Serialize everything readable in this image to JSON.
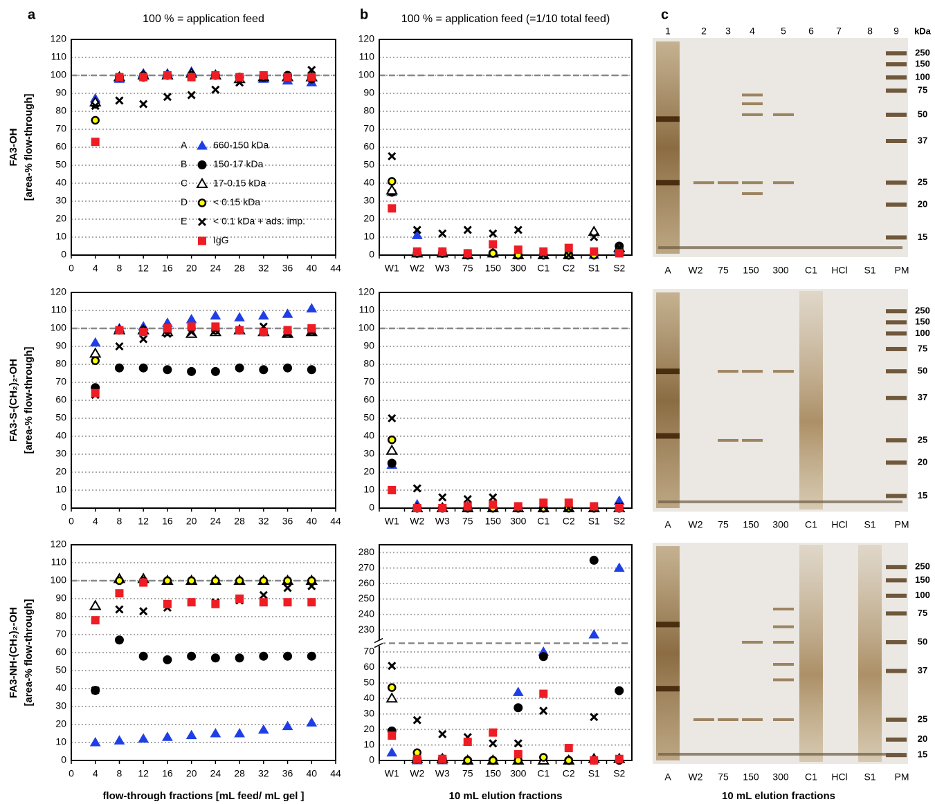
{
  "chart_data": [
    {
      "type": "scatter",
      "panel_label": "a",
      "title": "100 % = application feed",
      "ylabel": [
        "FA3-OH",
        "[area-% flow-through]"
      ],
      "x": [
        4,
        8,
        12,
        16,
        20,
        24,
        28,
        32,
        36,
        40
      ],
      "xlim": [
        0,
        44
      ],
      "xticks": [
        0,
        4,
        8,
        12,
        16,
        20,
        24,
        28,
        32,
        36,
        40,
        44
      ],
      "ylim": [
        0,
        120
      ],
      "yticks": [
        0,
        10,
        20,
        30,
        40,
        50,
        60,
        70,
        80,
        90,
        100,
        110,
        120
      ],
      "grid": true,
      "reference_line": 100,
      "legend": "center right",
      "series": [
        {
          "key": "A",
          "name": "660-150 kDa",
          "marker": "triangle",
          "color": "#1f3fe6",
          "values": [
            87,
            98,
            101,
            101,
            102,
            100,
            98,
            98,
            97,
            96
          ]
        },
        {
          "key": "B",
          "name": "150-17 kDa",
          "marker": "circle",
          "color": "#000000",
          "values": [
            84,
            99,
            99,
            100,
            100,
            100,
            99,
            99,
            100,
            98
          ]
        },
        {
          "key": "C",
          "name": "17-0.15 kDa",
          "marker": "triangle",
          "color": "#ffffff",
          "edgecolor": "#000000",
          "values": [
            85,
            99,
            100,
            100,
            101,
            100,
            98,
            99,
            99,
            99
          ]
        },
        {
          "key": "D",
          "name": "< 0.15 kDa",
          "marker": "circle",
          "color": "#ffff00",
          "edgecolor": "#000000",
          "values": [
            75,
            99,
            100,
            100,
            100,
            100,
            99,
            99,
            99,
            99
          ]
        },
        {
          "key": "E",
          "name": "< 0.1 kDa + ads. imp.",
          "marker": "x",
          "color": "#000000",
          "values": [
            83,
            86,
            84,
            88,
            89,
            92,
            96,
            99,
            99,
            103
          ]
        },
        {
          "name": "IgG",
          "marker": "square",
          "color": "#ee1c24",
          "values": [
            63,
            99,
            99,
            100,
            99,
            100,
            99,
            100,
            99,
            99
          ]
        }
      ]
    },
    {
      "type": "scatter",
      "panel_label": "b",
      "title": "100 % = application feed (=1/10 total feed)",
      "categories": [
        "W1",
        "W2",
        "W3",
        "75",
        "150",
        "300",
        "C1",
        "C2",
        "S1",
        "S2"
      ],
      "ylim": [
        0,
        120
      ],
      "yticks": [
        0,
        10,
        20,
        30,
        40,
        50,
        60,
        70,
        80,
        90,
        100,
        110,
        120
      ],
      "grid": true,
      "reference_line": 100,
      "series": [
        {
          "marker": "triangle",
          "color": "#1f3fe6",
          "values": [
            35,
            11,
            1,
            0,
            1,
            0,
            0,
            0,
            0,
            3
          ]
        },
        {
          "marker": "circle",
          "color": "#000000",
          "values": [
            35,
            1,
            1,
            0,
            1,
            0,
            0,
            0,
            0,
            5
          ]
        },
        {
          "marker": "triangle",
          "color": "#ffffff",
          "edgecolor": "#000000",
          "values": [
            36,
            1,
            1,
            0,
            1,
            0,
            0,
            0,
            13,
            4
          ]
        },
        {
          "marker": "circle",
          "color": "#ffff00",
          "edgecolor": "#000000",
          "values": [
            41,
            1,
            1,
            0,
            1,
            0,
            0,
            0,
            0,
            3
          ]
        },
        {
          "marker": "x",
          "color": "#000000",
          "values": [
            55,
            14,
            12,
            14,
            12,
            14,
            0,
            0,
            10,
            4
          ]
        },
        {
          "marker": "square",
          "color": "#ee1c24",
          "values": [
            26,
            2,
            2,
            1,
            6,
            3,
            2,
            4,
            2,
            1
          ]
        }
      ]
    },
    {
      "type": "scatter",
      "ylabel": [
        "FA3-S-(CH₂)₂-OH",
        "[area-% flow-through]"
      ],
      "x": [
        4,
        8,
        12,
        16,
        20,
        24,
        28,
        32,
        36,
        40
      ],
      "xlim": [
        0,
        44
      ],
      "xticks": [
        0,
        4,
        8,
        12,
        16,
        20,
        24,
        28,
        32,
        36,
        40,
        44
      ],
      "ylim": [
        0,
        120
      ],
      "yticks": [
        0,
        10,
        20,
        30,
        40,
        50,
        60,
        70,
        80,
        90,
        100,
        110,
        120
      ],
      "grid": true,
      "reference_line": 100,
      "series": [
        {
          "marker": "triangle",
          "color": "#1f3fe6",
          "values": [
            92,
            100,
            101,
            103,
            105,
            107,
            106,
            107,
            108,
            111
          ]
        },
        {
          "marker": "circle",
          "color": "#000000",
          "values": [
            67,
            78,
            78,
            77,
            76,
            76,
            78,
            77,
            78,
            77
          ]
        },
        {
          "marker": "triangle",
          "color": "#ffffff",
          "edgecolor": "#000000",
          "values": [
            86,
            99,
            99,
            98,
            97,
            98,
            99,
            98,
            97,
            98
          ]
        },
        {
          "marker": "circle",
          "color": "#ffff00",
          "edgecolor": "#000000",
          "values": [
            82,
            99,
            99,
            99,
            100,
            99,
            99,
            98,
            98,
            99
          ]
        },
        {
          "marker": "x",
          "color": "#000000",
          "values": [
            63,
            90,
            94,
            97,
            98,
            99,
            99,
            101,
            97,
            98
          ]
        },
        {
          "marker": "square",
          "color": "#ee1c24",
          "values": [
            64,
            99,
            98,
            100,
            101,
            101,
            99,
            98,
            99,
            100
          ]
        }
      ]
    },
    {
      "type": "scatter",
      "categories": [
        "W1",
        "W2",
        "W3",
        "75",
        "150",
        "300",
        "C1",
        "C2",
        "S1",
        "S2"
      ],
      "ylim": [
        0,
        120
      ],
      "yticks": [
        0,
        10,
        20,
        30,
        40,
        50,
        60,
        70,
        80,
        90,
        100,
        110,
        120
      ],
      "grid": true,
      "reference_line": 100,
      "series": [
        {
          "marker": "triangle",
          "color": "#1f3fe6",
          "values": [
            24,
            2,
            0,
            1,
            1,
            0,
            0,
            0,
            0,
            4
          ]
        },
        {
          "marker": "circle",
          "color": "#000000",
          "values": [
            25,
            0,
            0,
            0,
            0,
            0,
            0,
            0,
            0,
            0
          ]
        },
        {
          "marker": "triangle",
          "color": "#ffffff",
          "edgecolor": "#000000",
          "values": [
            32,
            0,
            0,
            0,
            0,
            0,
            0,
            0,
            0,
            0
          ]
        },
        {
          "marker": "circle",
          "color": "#ffff00",
          "edgecolor": "#000000",
          "values": [
            38,
            0,
            0,
            0,
            0,
            0,
            0,
            0,
            0,
            0
          ]
        },
        {
          "marker": "x",
          "color": "#000000",
          "values": [
            50,
            11,
            6,
            5,
            6,
            1,
            1,
            0,
            0,
            1
          ]
        },
        {
          "marker": "square",
          "color": "#ee1c24",
          "values": [
            10,
            0,
            0,
            1,
            2,
            1,
            3,
            3,
            1,
            0
          ]
        }
      ]
    },
    {
      "type": "scatter",
      "ylabel": [
        "FA3-NH-(CH₂)₂-OH",
        "[area-% flow-through]"
      ],
      "xlabel": "flow-through fractions [mL feed/ mL gel ]",
      "x": [
        4,
        8,
        12,
        16,
        20,
        24,
        28,
        32,
        36,
        40
      ],
      "xlim": [
        0,
        44
      ],
      "xticks": [
        0,
        4,
        8,
        12,
        16,
        20,
        24,
        28,
        32,
        36,
        40,
        44
      ],
      "ylim": [
        0,
        120
      ],
      "yticks": [
        0,
        10,
        20,
        30,
        40,
        50,
        60,
        70,
        80,
        90,
        100,
        110,
        120
      ],
      "grid": true,
      "reference_line": 100,
      "series": [
        {
          "marker": "triangle",
          "color": "#1f3fe6",
          "values": [
            10,
            11,
            12,
            13,
            14,
            15,
            15,
            17,
            19,
            21
          ]
        },
        {
          "marker": "circle",
          "color": "#000000",
          "values": [
            39,
            67,
            58,
            56,
            58,
            57,
            57,
            58,
            58,
            58
          ]
        },
        {
          "marker": "triangle",
          "color": "#ffffff",
          "edgecolor": "#000000",
          "values": [
            86,
            101,
            101,
            100,
            100,
            100,
            100,
            100,
            100,
            100
          ]
        },
        {
          "marker": "circle",
          "color": "#ffff00",
          "edgecolor": "#000000",
          "values": [
            null,
            100,
            100,
            100,
            100,
            100,
            100,
            100,
            100,
            100
          ]
        },
        {
          "marker": "x",
          "color": "#000000",
          "values": [
            39,
            84,
            83,
            85,
            88,
            88,
            89,
            92,
            96,
            97
          ]
        },
        {
          "marker": "square",
          "color": "#ee1c24",
          "values": [
            78,
            93,
            99,
            87,
            88,
            87,
            90,
            88,
            88,
            88
          ]
        }
      ]
    },
    {
      "type": "scatter",
      "xlabel": "10 mL elution fractions",
      "categories": [
        "W1",
        "W2",
        "W3",
        "75",
        "150",
        "300",
        "C1",
        "C2",
        "S1",
        "S2"
      ],
      "ylim": [
        0,
        285
      ],
      "ybreak": [
        72,
        225
      ],
      "yticks": [
        0,
        10,
        20,
        30,
        40,
        50,
        60,
        70,
        230,
        240,
        250,
        260,
        270,
        280
      ],
      "grid": true,
      "reference_line": 100,
      "series": [
        {
          "marker": "triangle",
          "color": "#1f3fe6",
          "values": [
            5,
            0,
            0,
            0,
            0,
            44,
            70,
            0,
            227,
            270
          ]
        },
        {
          "marker": "circle",
          "color": "#000000",
          "values": [
            19,
            1,
            1,
            0,
            0,
            34,
            67,
            0,
            275,
            45
          ]
        },
        {
          "marker": "triangle",
          "color": "#ffffff",
          "edgecolor": "#000000",
          "values": [
            40,
            1,
            1,
            0,
            0,
            0,
            0,
            0,
            1,
            1
          ]
        },
        {
          "marker": "circle",
          "color": "#ffff00",
          "edgecolor": "#000000",
          "values": [
            47,
            5,
            1,
            0,
            0,
            0,
            2,
            0,
            0,
            0
          ]
        },
        {
          "marker": "x",
          "color": "#000000",
          "values": [
            61,
            26,
            17,
            15,
            11,
            11,
            32,
            null,
            28,
            null
          ]
        },
        {
          "marker": "square",
          "color": "#ee1c24",
          "values": [
            16,
            1,
            1,
            12,
            18,
            4,
            43,
            8,
            0,
            1
          ]
        }
      ]
    }
  ],
  "gels": {
    "panel_label": "c",
    "lane_numbers": [
      1,
      2,
      3,
      4,
      5,
      6,
      7,
      8,
      9
    ],
    "unit": "kDa",
    "lane_labels": [
      "A",
      "W2",
      "75",
      "150",
      "300",
      "C1",
      "HCl",
      "S1",
      "PM"
    ],
    "marker_kda": [
      250,
      150,
      100,
      75,
      50,
      37,
      25,
      20,
      15
    ],
    "xlabel": "10 mL elution fractions"
  }
}
